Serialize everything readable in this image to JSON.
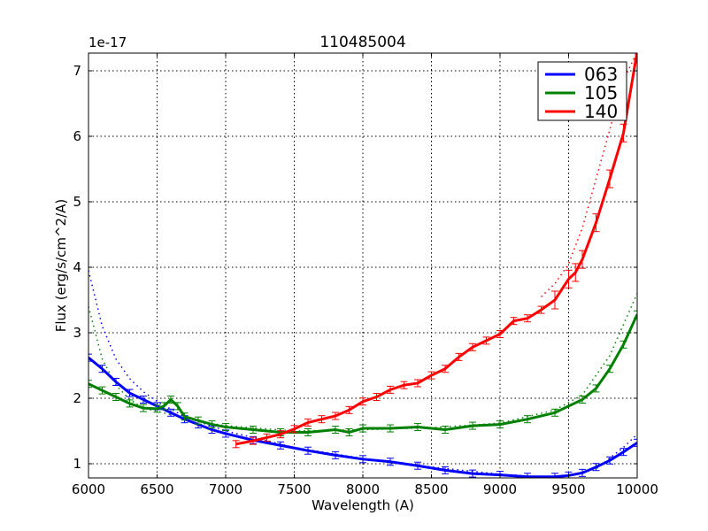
{
  "chart_data": {
    "type": "line",
    "title": "110485004",
    "xlabel": "Wavelength (A)",
    "ylabel": "Flux (erg/s/cm^2/A)",
    "y_offset_label": "1e-17",
    "xlim": [
      6000,
      10000
    ],
    "ylim": [
      0.78,
      7.27
    ],
    "xticks": [
      6000,
      6500,
      7000,
      7500,
      8000,
      8500,
      9000,
      9500,
      10000
    ],
    "yticks": [
      1,
      2,
      3,
      4,
      5,
      6,
      7
    ],
    "grid": true,
    "legend_position": "upper right",
    "series": [
      {
        "name": "063",
        "color": "#0000ff",
        "x": [
          6000,
          6100,
          6200,
          6300,
          6400,
          6500,
          6600,
          6700,
          6800,
          6900,
          7000,
          7200,
          7400,
          7600,
          7800,
          8000,
          8200,
          8400,
          8600,
          8800,
          9000,
          9200,
          9400,
          9500,
          9600,
          9700,
          9800,
          9900,
          10000
        ],
        "values": [
          2.62,
          2.45,
          2.25,
          2.08,
          1.98,
          1.88,
          1.78,
          1.68,
          1.6,
          1.52,
          1.46,
          1.36,
          1.28,
          1.2,
          1.13,
          1.07,
          1.03,
          0.97,
          0.9,
          0.85,
          0.83,
          0.8,
          0.8,
          0.82,
          0.86,
          0.95,
          1.05,
          1.18,
          1.32
        ],
        "fit_x": [
          6000,
          6100,
          6200,
          6300,
          6400,
          6500,
          6700,
          7000,
          7500,
          8000,
          8500,
          9000,
          9300,
          9500,
          9700,
          9900,
          10000
        ],
        "fit_values": [
          3.95,
          3.1,
          2.6,
          2.3,
          2.1,
          1.95,
          1.72,
          1.5,
          1.25,
          1.08,
          0.95,
          0.84,
          0.8,
          0.82,
          0.92,
          1.25,
          1.45
        ]
      },
      {
        "name": "105",
        "color": "#008000",
        "x": [
          6000,
          6100,
          6200,
          6300,
          6400,
          6500,
          6550,
          6600,
          6650,
          6700,
          6800,
          6900,
          7000,
          7200,
          7400,
          7600,
          7800,
          7900,
          8000,
          8200,
          8400,
          8600,
          8800,
          9000,
          9200,
          9400,
          9600,
          9700,
          9800,
          9900,
          10000
        ],
        "values": [
          2.22,
          2.12,
          2.02,
          1.92,
          1.85,
          1.84,
          1.88,
          1.98,
          1.88,
          1.72,
          1.66,
          1.6,
          1.56,
          1.52,
          1.48,
          1.48,
          1.52,
          1.48,
          1.54,
          1.54,
          1.56,
          1.52,
          1.58,
          1.6,
          1.68,
          1.78,
          1.98,
          2.15,
          2.45,
          2.82,
          3.28
        ],
        "fit_x": [
          6000,
          6100,
          6200,
          6300,
          6400,
          6600,
          6800,
          7000,
          7500,
          8000,
          8500,
          9000,
          9400,
          9600,
          9800,
          10000
        ],
        "fit_values": [
          3.4,
          2.6,
          2.2,
          1.98,
          1.85,
          1.75,
          1.65,
          1.58,
          1.5,
          1.52,
          1.55,
          1.62,
          1.82,
          2.05,
          2.65,
          3.6
        ]
      },
      {
        "name": "140",
        "color": "#ff0000",
        "x": [
          7075,
          7200,
          7300,
          7400,
          7500,
          7600,
          7700,
          7800,
          7900,
          8000,
          8100,
          8200,
          8300,
          8400,
          8500,
          8600,
          8700,
          8800,
          8900,
          9000,
          9100,
          9200,
          9300,
          9400,
          9500,
          9550,
          9600,
          9700,
          9800,
          9900,
          10000
        ],
        "values": [
          1.3,
          1.35,
          1.4,
          1.45,
          1.53,
          1.63,
          1.68,
          1.73,
          1.82,
          1.95,
          2.02,
          2.13,
          2.2,
          2.23,
          2.35,
          2.45,
          2.63,
          2.78,
          2.88,
          2.98,
          3.18,
          3.22,
          3.35,
          3.5,
          3.82,
          3.92,
          4.12,
          4.68,
          5.35,
          6.05,
          7.3
        ],
        "fit_x": [
          9300,
          9400,
          9500,
          9600,
          9700,
          9800,
          9900,
          10000
        ],
        "fit_values": [
          3.55,
          3.75,
          4.05,
          4.6,
          5.35,
          6.1,
          6.85,
          7.3
        ]
      }
    ]
  }
}
